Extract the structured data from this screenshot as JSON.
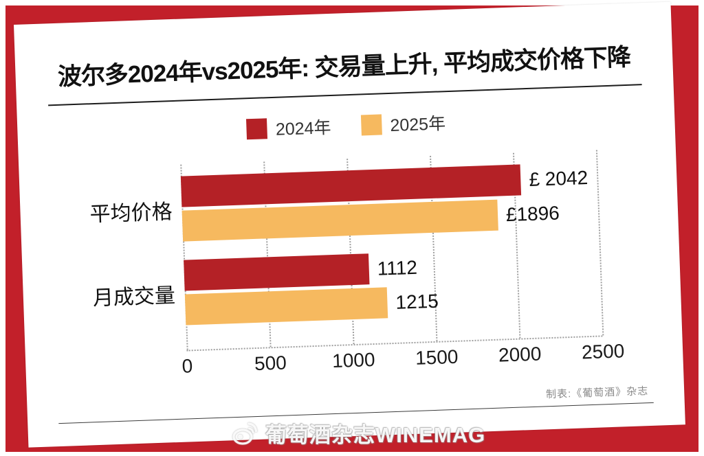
{
  "colors": {
    "frame_red": "#C2202A",
    "bar_red": "#B42126",
    "bar_orange": "#F6B95F",
    "grid": "#9d9d9d",
    "title_text": "#111111",
    "credit_text": "#8a8a8a"
  },
  "title": "波尔多2024年vs2025年: 交易量上升, 平均成交价格下降",
  "legend": {
    "items": [
      {
        "label": "2024年",
        "color": "#B42126"
      },
      {
        "label": "2025年",
        "color": "#F6B95F"
      }
    ]
  },
  "chart_data": {
    "type": "bar",
    "orientation": "horizontal",
    "title": "波尔多2024年vs2025年: 交易量上升, 平均成交价格下降",
    "categories": [
      "平均价格",
      "月成交量"
    ],
    "series": [
      {
        "name": "2024年",
        "color": "#B42126",
        "values": [
          2042,
          1112
        ],
        "value_labels": [
          "£ 2042",
          "1112"
        ]
      },
      {
        "name": "2025年",
        "color": "#F6B95F",
        "values": [
          1896,
          1215
        ],
        "value_labels": [
          "£1896",
          "1215"
        ]
      }
    ],
    "xlim": [
      0,
      2500
    ],
    "xticks": [
      "0",
      "500",
      "1000",
      "1500",
      "2000",
      "2500"
    ],
    "grid": "vertical dotted",
    "legend_position": "top-center",
    "source_note": "制表:《葡萄酒》杂志"
  },
  "footer": {
    "credit": "制表:《葡萄酒》杂志"
  },
  "watermark": {
    "icon": "weibo-logo",
    "text": "葡萄酒杂志WINEMAG"
  }
}
